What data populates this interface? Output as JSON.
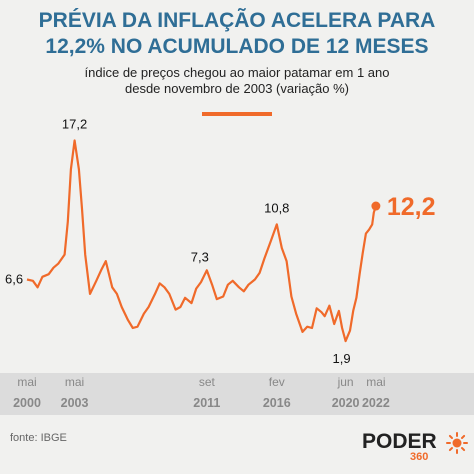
{
  "header": {
    "title_line1": "PRÉVIA DA INFLAÇÃO ACELERA PARA",
    "title_line2": "12,2% NO ACUMULADO DE 12 MESES",
    "subtitle_line1": "índice de preços chegou ao maior patamar em 1 ano",
    "subtitle_line2": "desde novembro de 2003 (variação %)"
  },
  "footer": {
    "source": "fonte: IBGE",
    "logo_word": "PODER",
    "logo_sub": "360"
  },
  "colors": {
    "line": "#f06a2a",
    "title": "#2f6e96",
    "axis_band": "#dcdcdc",
    "background": "#f1f1ef"
  },
  "chart_data": {
    "type": "line",
    "title": "PRÉVIA DA INFLAÇÃO ACELERA PARA 12,2% NO ACUMULADO DE 12 MESES",
    "xlabel": "",
    "ylabel": "",
    "ylim": [
      0,
      18
    ],
    "xlim": [
      2000.33,
      2022.4
    ],
    "grid": false,
    "legend": "none",
    "x_ticks": [
      {
        "month": "mai",
        "year": "2000",
        "x": 2000.33
      },
      {
        "month": "mai",
        "year": "2003",
        "x": 2003.33
      },
      {
        "month": "set",
        "year": "2011",
        "x": 2011.67
      },
      {
        "month": "fev",
        "year": "2016",
        "x": 2016.08
      },
      {
        "month": "jun",
        "year": "2020",
        "x": 2020.42
      },
      {
        "month": "mai",
        "year": "2022",
        "x": 2022.33
      }
    ],
    "annotations": [
      {
        "text": "6,6",
        "x": 2000.33,
        "y": 6.6
      },
      {
        "text": "17,2",
        "x": 2003.33,
        "y": 17.2
      },
      {
        "text": "7,3",
        "x": 2011.67,
        "y": 7.3
      },
      {
        "text": "10,8",
        "x": 2016.08,
        "y": 10.8
      },
      {
        "text": "1,9",
        "x": 2020.42,
        "y": 1.9
      },
      {
        "text": "12,2",
        "x": 2022.33,
        "y": 12.2
      }
    ],
    "series": [
      {
        "values": [
          [
            2000.33,
            6.6
          ],
          [
            2000.7,
            6.5
          ],
          [
            2001.0,
            6.0
          ],
          [
            2001.3,
            6.8
          ],
          [
            2001.7,
            7.0
          ],
          [
            2002.0,
            7.5
          ],
          [
            2002.3,
            7.8
          ],
          [
            2002.7,
            8.5
          ],
          [
            2002.9,
            11.0
          ],
          [
            2003.1,
            15.0
          ],
          [
            2003.33,
            17.2
          ],
          [
            2003.6,
            15.0
          ],
          [
            2003.8,
            12.0
          ],
          [
            2004.0,
            8.5
          ],
          [
            2004.3,
            5.5
          ],
          [
            2004.7,
            6.5
          ],
          [
            2005.0,
            7.3
          ],
          [
            2005.3,
            8.0
          ],
          [
            2005.7,
            6.0
          ],
          [
            2006.0,
            5.5
          ],
          [
            2006.3,
            4.5
          ],
          [
            2006.7,
            3.5
          ],
          [
            2007.0,
            2.9
          ],
          [
            2007.3,
            3.0
          ],
          [
            2007.7,
            4.0
          ],
          [
            2008.0,
            4.5
          ],
          [
            2008.4,
            5.5
          ],
          [
            2008.7,
            6.3
          ],
          [
            2009.0,
            6.0
          ],
          [
            2009.3,
            5.5
          ],
          [
            2009.7,
            4.3
          ],
          [
            2010.0,
            4.5
          ],
          [
            2010.3,
            5.2
          ],
          [
            2010.7,
            4.8
          ],
          [
            2011.0,
            5.9
          ],
          [
            2011.3,
            6.4
          ],
          [
            2011.67,
            7.3
          ],
          [
            2012.0,
            6.2
          ],
          [
            2012.3,
            5.1
          ],
          [
            2012.7,
            5.3
          ],
          [
            2013.0,
            6.2
          ],
          [
            2013.3,
            6.5
          ],
          [
            2013.7,
            6.0
          ],
          [
            2014.0,
            5.7
          ],
          [
            2014.3,
            6.2
          ],
          [
            2014.7,
            6.6
          ],
          [
            2015.0,
            7.1
          ],
          [
            2015.3,
            8.2
          ],
          [
            2015.7,
            9.5
          ],
          [
            2016.08,
            10.8
          ],
          [
            2016.4,
            9.0
          ],
          [
            2016.7,
            8.0
          ],
          [
            2017.0,
            5.3
          ],
          [
            2017.3,
            4.0
          ],
          [
            2017.7,
            2.6
          ],
          [
            2018.0,
            3.0
          ],
          [
            2018.3,
            2.9
          ],
          [
            2018.6,
            4.4
          ],
          [
            2018.9,
            4.1
          ],
          [
            2019.1,
            3.8
          ],
          [
            2019.4,
            4.6
          ],
          [
            2019.7,
            3.2
          ],
          [
            2020.0,
            4.2
          ],
          [
            2020.2,
            2.9
          ],
          [
            2020.42,
            1.9
          ],
          [
            2020.7,
            2.7
          ],
          [
            2020.9,
            4.2
          ],
          [
            2021.1,
            5.2
          ],
          [
            2021.3,
            7.0
          ],
          [
            2021.5,
            8.6
          ],
          [
            2021.7,
            10.1
          ],
          [
            2021.9,
            10.4
          ],
          [
            2022.1,
            10.8
          ],
          [
            2022.2,
            11.7
          ],
          [
            2022.33,
            12.2
          ]
        ]
      }
    ]
  }
}
